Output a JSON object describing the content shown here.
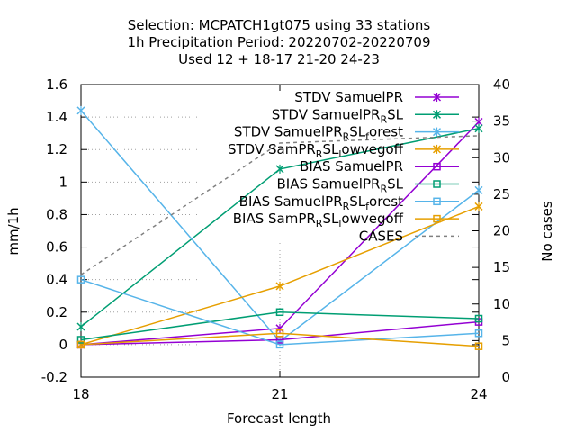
{
  "chart_data": {
    "type": "line",
    "title_lines": [
      "Selection: MCPATCH1gt075 using    33 stations",
      "1h Precipitation   Period: 20220702-20220709",
      "Used  12 + 18-17 21-20 24-23"
    ],
    "xlabel": "Forecast length",
    "ylabel": "mm/1h",
    "y2label": "No cases",
    "x": [
      18,
      21,
      24
    ],
    "xlim": [
      18,
      24
    ],
    "ylim": [
      -0.2,
      1.6
    ],
    "y2lim": [
      0,
      40
    ],
    "x_ticks": [
      "18",
      "21",
      "24"
    ],
    "y_ticks": [
      "-0.2",
      "0",
      "0.2",
      "0.4",
      "0.6",
      "0.8",
      "1",
      "1.2",
      "1.4",
      "1.6"
    ],
    "y2_ticks": [
      "0",
      "5",
      "10",
      "15",
      "20",
      "25",
      "30",
      "35",
      "40"
    ],
    "grid": true,
    "legend_position": "top-right",
    "series": [
      {
        "name": "STDV SamuelPR",
        "color": "#9400d3",
        "marker": "x",
        "values": [
          0.0,
          0.1,
          1.37
        ]
      },
      {
        "name": "STDV SamuelPR_RSL",
        "color": "#009e73",
        "marker": "x",
        "values": [
          0.11,
          1.08,
          1.33
        ]
      },
      {
        "name": "STDV SamuelPR_RSL_forest",
        "color": "#56b4e9",
        "marker": "x",
        "values": [
          1.44,
          0.02,
          0.95
        ]
      },
      {
        "name": "STDV SamPR_RSL_lowvegoff",
        "color": "#e69f00",
        "marker": "x",
        "values": [
          0.0,
          0.36,
          0.85
        ]
      },
      {
        "name": "BIAS SamuelPR",
        "color": "#9400d3",
        "marker": "square",
        "values": [
          0.0,
          0.03,
          0.14
        ]
      },
      {
        "name": "BIAS SamuelPR_RSL",
        "color": "#009e73",
        "marker": "square",
        "values": [
          0.03,
          0.2,
          0.16
        ]
      },
      {
        "name": "BIAS SamuelPR_RSL_forest",
        "color": "#56b4e9",
        "marker": "square",
        "values": [
          0.4,
          0.0,
          0.07
        ]
      },
      {
        "name": "BIAS SamPR_RSL_lowvegoff",
        "color": "#e69f00",
        "marker": "square",
        "values": [
          0.0,
          0.07,
          -0.01
        ]
      },
      {
        "name": "CASES",
        "color": "#808080",
        "marker": "none",
        "dashed": true,
        "axis": "y2",
        "values": [
          14,
          32,
          33
        ]
      }
    ],
    "legend_labels": [
      {
        "main": "STDV SamuelPR",
        "parts": []
      },
      {
        "main": "STDV SamuelPR",
        "parts": [
          {
            "sub": "R"
          },
          {
            "text": "SL"
          }
        ]
      },
      {
        "main": "STDV SamuelPR",
        "parts": [
          {
            "sub": "R"
          },
          {
            "text": "SL"
          },
          {
            "sub": "f"
          },
          {
            "text": "orest"
          }
        ]
      },
      {
        "main": "STDV SamPR",
        "parts": [
          {
            "sub": "R"
          },
          {
            "text": "SL"
          },
          {
            "sub": "l"
          },
          {
            "text": "owvegoff"
          }
        ]
      },
      {
        "main": "BIAS SamuelPR",
        "parts": []
      },
      {
        "main": "BIAS SamuelPR",
        "parts": [
          {
            "sub": "R"
          },
          {
            "text": "SL"
          }
        ]
      },
      {
        "main": "BIAS SamuelPR",
        "parts": [
          {
            "sub": "R"
          },
          {
            "text": "SL"
          },
          {
            "sub": "f"
          },
          {
            "text": "orest"
          }
        ]
      },
      {
        "main": "BIAS SamPR",
        "parts": [
          {
            "sub": "R"
          },
          {
            "text": "SL"
          },
          {
            "sub": "l"
          },
          {
            "text": "owvegoff"
          }
        ]
      },
      {
        "main": "CASES",
        "parts": []
      }
    ]
  }
}
